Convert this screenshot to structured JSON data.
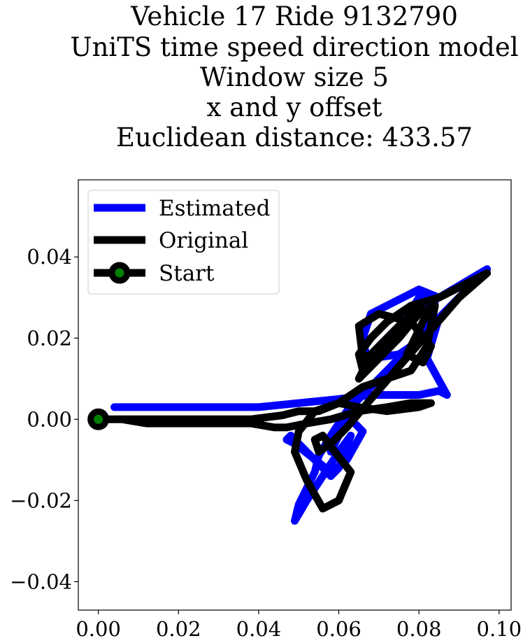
{
  "chart_data": {
    "type": "line",
    "title_lines": [
      "Vehicle 17 Ride 9132790",
      "UniTS time speed direction model",
      "Window size 5",
      "x and y offset",
      "Euclidean distance: 433.57"
    ],
    "xlabel": "",
    "ylabel": "",
    "xlim": [
      -0.005,
      0.103
    ],
    "ylim": [
      -0.047,
      0.059
    ],
    "x_ticks": [
      0.0,
      0.02,
      0.04,
      0.06,
      0.08,
      0.1
    ],
    "x_tick_labels": [
      "0.00",
      "0.02",
      "0.04",
      "0.06",
      "0.08",
      "0.10"
    ],
    "y_ticks": [
      -0.04,
      -0.02,
      0.0,
      0.02,
      0.04
    ],
    "y_tick_labels": [
      "−0.04",
      "−0.02",
      "0.00",
      "0.02",
      "0.04"
    ],
    "grid": false,
    "legend_position": "upper-left",
    "series": [
      {
        "name": "Estimated",
        "color": "#0000ff",
        "x": [
          0.004,
          0.01,
          0.02,
          0.03,
          0.04,
          0.05,
          0.06,
          0.068,
          0.075,
          0.08,
          0.085,
          0.087,
          0.082,
          0.085,
          0.097,
          0.085,
          0.08,
          0.068,
          0.066,
          0.067,
          0.072,
          0.08,
          0.083,
          0.081,
          0.075,
          0.068,
          0.066,
          0.07,
          0.075,
          0.08,
          0.084,
          0.078,
          0.068,
          0.062,
          0.058,
          0.055,
          0.054,
          0.052,
          0.05,
          0.049,
          0.052,
          0.056,
          0.06,
          0.063,
          0.06,
          0.058,
          0.053,
          0.048,
          0.047,
          0.049,
          0.058,
          0.062,
          0.066,
          0.063,
          0.06,
          0.058
        ],
        "y": [
          0.003,
          0.003,
          0.003,
          0.003,
          0.003,
          0.004,
          0.005,
          0.006,
          0.006,
          0.006,
          0.007,
          0.006,
          0.015,
          0.025,
          0.037,
          0.03,
          0.032,
          0.026,
          0.02,
          0.015,
          0.02,
          0.028,
          0.03,
          0.02,
          0.016,
          0.015,
          0.013,
          0.017,
          0.022,
          0.03,
          0.029,
          0.018,
          0.008,
          0.002,
          -0.004,
          -0.009,
          -0.013,
          -0.017,
          -0.021,
          -0.025,
          -0.02,
          -0.014,
          -0.008,
          -0.004,
          -0.012,
          -0.014,
          -0.009,
          -0.004,
          -0.005,
          -0.006,
          -0.013,
          -0.01,
          -0.003,
          0.0,
          -0.004,
          -0.008
        ]
      },
      {
        "name": "Original",
        "color": "#000000",
        "x": [
          0.0,
          0.006,
          0.012,
          0.02,
          0.03,
          0.038,
          0.044,
          0.047,
          0.052,
          0.058,
          0.065,
          0.072,
          0.078,
          0.083,
          0.08,
          0.072,
          0.065,
          0.06,
          0.054,
          0.05,
          0.049,
          0.052,
          0.056,
          0.06,
          0.063,
          0.059,
          0.056,
          0.054,
          0.055,
          0.058,
          0.062,
          0.068,
          0.075,
          0.083,
          0.09,
          0.097,
          0.085,
          0.078,
          0.072,
          0.068,
          0.065,
          0.066,
          0.07,
          0.075,
          0.08,
          0.082,
          0.079,
          0.077,
          0.081,
          0.083,
          0.078,
          0.07,
          0.065,
          0.066,
          0.072,
          0.078,
          0.074,
          0.068,
          0.065,
          0.069,
          0.075,
          0.08,
          0.084,
          0.082,
          0.078,
          0.066,
          0.06,
          0.055,
          0.05,
          0.046,
          0.038,
          0.03,
          0.02,
          0.01,
          0.0
        ],
        "y": [
          0.0,
          0.0,
          -0.001,
          -0.001,
          -0.001,
          -0.001,
          -0.002,
          -0.002,
          -0.001,
          0.0,
          0.002,
          0.003,
          0.004,
          0.004,
          0.003,
          0.002,
          0.003,
          0.004,
          0.002,
          -0.003,
          -0.008,
          -0.015,
          -0.022,
          -0.02,
          -0.013,
          -0.008,
          -0.004,
          -0.005,
          -0.008,
          -0.006,
          -0.002,
          0.005,
          0.013,
          0.022,
          0.03,
          0.036,
          0.03,
          0.028,
          0.024,
          0.02,
          0.016,
          0.012,
          0.016,
          0.022,
          0.028,
          0.026,
          0.02,
          0.016,
          0.014,
          0.018,
          0.024,
          0.026,
          0.023,
          0.015,
          0.018,
          0.026,
          0.022,
          0.016,
          0.01,
          0.014,
          0.02,
          0.026,
          0.028,
          0.018,
          0.012,
          0.008,
          0.004,
          0.002,
          0.002,
          0.001,
          0.0,
          0.0,
          0.0,
          0.0,
          0.0
        ]
      }
    ],
    "start_point": {
      "name": "Start",
      "x": 0.0,
      "y": 0.0,
      "marker_color": "#008000",
      "edge_color": "#000000"
    }
  }
}
